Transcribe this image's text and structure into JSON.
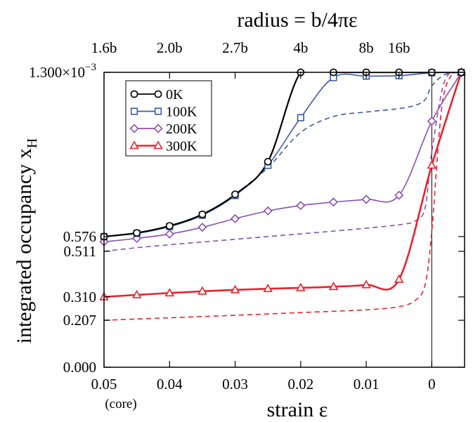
{
  "chart_data": {
    "type": "line",
    "title": "",
    "xlabel": "strain ε",
    "ylabel": "integrated occupancy x",
    "ylabel_subscript": "H",
    "x2label": "radius = b/4πε",
    "xlim": [
      0.05,
      -0.005
    ],
    "ylim": [
      0,
      0.0013
    ],
    "x_ticks": [
      {
        "value": 0.05,
        "label": "0.05"
      },
      {
        "value": 0.04,
        "label": "0.04"
      },
      {
        "value": 0.03,
        "label": "0.03"
      },
      {
        "value": 0.02,
        "label": "0.02"
      },
      {
        "value": 0.01,
        "label": "0.01"
      },
      {
        "value": 0.0,
        "label": "0"
      }
    ],
    "x_tick_note": "(core)",
    "x2_ticks": [
      {
        "value": 0.05,
        "label": "1.6b"
      },
      {
        "value": 0.04,
        "label": "2.0b"
      },
      {
        "value": 0.03,
        "label": "2.7b"
      },
      {
        "value": 0.02,
        "label": "4b"
      },
      {
        "value": 0.01,
        "label": "8b"
      },
      {
        "value": 0.005,
        "label": "16b"
      }
    ],
    "y_ticks": [
      {
        "value": 0.0,
        "label": "0.000"
      },
      {
        "value": 0.000207,
        "label": "0.207"
      },
      {
        "value": 0.00031,
        "label": "0.310"
      },
      {
        "value": 0.000511,
        "label": "0.511"
      },
      {
        "value": 0.000576,
        "label": "0.576"
      },
      {
        "value": 0.0013,
        "label": "1.300×10",
        "sup": "−3"
      }
    ],
    "vline_x": 0.0,
    "legend_position": "top-left",
    "series": [
      {
        "name": "0K",
        "color": "#000000",
        "marker": "circle",
        "dashed": false,
        "x": [
          0.05,
          0.045,
          0.04,
          0.035,
          0.03,
          0.025,
          0.02,
          0.015,
          0.01,
          0.005,
          0.0,
          -0.0045
        ],
        "y": [
          0.000576,
          0.000592,
          0.000623,
          0.000674,
          0.000762,
          0.000906,
          0.0013,
          0.0013,
          0.0013,
          0.0013,
          0.0013,
          0.0013
        ]
      },
      {
        "name": "100K",
        "color": "#3b5ba5",
        "marker": "square",
        "dashed": false,
        "x": [
          0.05,
          0.045,
          0.04,
          0.035,
          0.03,
          0.025,
          0.02,
          0.015,
          0.01,
          0.005,
          0.0,
          -0.0045
        ],
        "y": [
          0.000576,
          0.00059,
          0.00062,
          0.00067,
          0.000757,
          0.00089,
          0.0011,
          0.001277,
          0.001283,
          0.001285,
          0.001298,
          0.0013
        ]
      },
      {
        "name": "200K",
        "color": "#8a4fae",
        "marker": "diamond",
        "dashed": false,
        "x": [
          0.05,
          0.045,
          0.04,
          0.035,
          0.03,
          0.025,
          0.02,
          0.015,
          0.01,
          0.005,
          0.0,
          -0.0045
        ],
        "y": [
          0.000553,
          0.000568,
          0.000587,
          0.000617,
          0.000655,
          0.000689,
          0.000713,
          0.000728,
          0.00074,
          0.000758,
          0.001085,
          0.001298
        ]
      },
      {
        "name": "300K",
        "color": "#e8232d",
        "marker": "triangle",
        "dashed": false,
        "x": [
          0.05,
          0.045,
          0.04,
          0.035,
          0.03,
          0.025,
          0.02,
          0.015,
          0.01,
          0.005,
          0.0,
          -0.0045
        ],
        "y": [
          0.00031,
          0.000319,
          0.000327,
          0.000335,
          0.000341,
          0.000346,
          0.00035,
          0.000355,
          0.000363,
          0.000387,
          0.00089,
          0.0013
        ]
      },
      {
        "name": "",
        "color": "#3b5ba5",
        "marker": "none",
        "dashed": true,
        "x": [
          0.03,
          0.025,
          0.02,
          0.015,
          0.01,
          0.005,
          0.0025,
          0.001,
          0.0,
          -0.002,
          -0.0045
        ],
        "y": [
          0.000762,
          0.00088,
          0.001035,
          0.001105,
          0.001125,
          0.00114,
          0.001155,
          0.00118,
          0.00124,
          0.00129,
          0.0013
        ]
      },
      {
        "name": "",
        "color": "#8a4fae",
        "marker": "none",
        "dashed": true,
        "x": [
          0.05,
          0.045,
          0.04,
          0.035,
          0.03,
          0.025,
          0.02,
          0.015,
          0.01,
          0.005,
          0.0025,
          0.001,
          0.0,
          -0.002,
          -0.0045
        ],
        "y": [
          0.000511,
          0.000527,
          0.00054,
          0.000552,
          0.000564,
          0.000576,
          0.000588,
          0.0006,
          0.000613,
          0.000628,
          0.000645,
          0.000704,
          0.00095,
          0.001265,
          0.0013
        ]
      },
      {
        "name": "",
        "color": "#e8232d",
        "marker": "none",
        "dashed": true,
        "x": [
          0.05,
          0.04,
          0.03,
          0.02,
          0.01,
          0.005,
          0.0025,
          0.001,
          0.0,
          -0.0015,
          -0.003,
          -0.0045
        ],
        "y": [
          0.000207,
          0.000218,
          0.000229,
          0.000241,
          0.000253,
          0.000267,
          0.000295,
          0.000366,
          0.0006,
          0.00114,
          0.001288,
          0.0013
        ]
      }
    ]
  }
}
